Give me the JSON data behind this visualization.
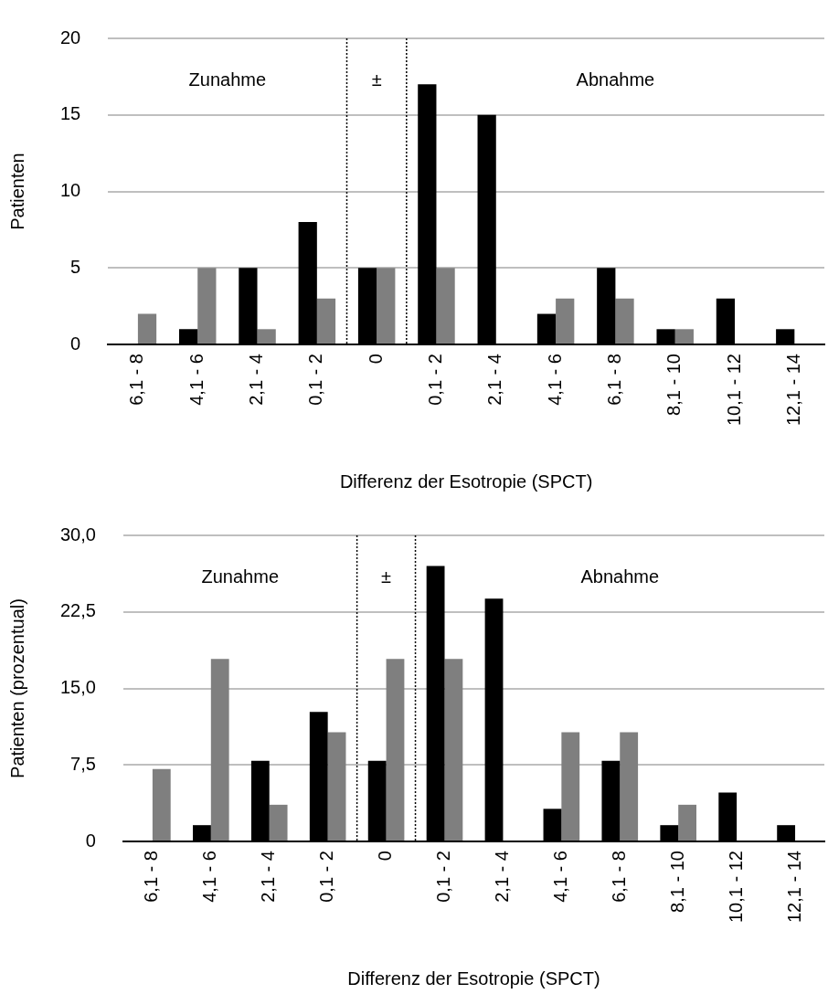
{
  "chart_data": [
    {
      "type": "bar",
      "categories": [
        "6,1 - 8",
        "4,1 - 6",
        "2,1 - 4",
        "0,1 - 2",
        "0",
        "0,1 - 2",
        "2,1 - 4",
        "4,1 - 6",
        "6,1 - 8",
        "8,1 - 10",
        "10,1 - 12",
        "12,1 - 14"
      ],
      "series": [
        {
          "color": "#000000",
          "values": [
            0,
            1,
            5,
            8,
            5,
            17,
            15,
            2,
            5,
            1,
            3,
            1
          ]
        },
        {
          "color": "#7f7f7f",
          "values": [
            2,
            5,
            1,
            3,
            5,
            5,
            0,
            3,
            3,
            1,
            0,
            0
          ]
        }
      ],
      "ylim": [
        0,
        20
      ],
      "yticks": [
        0,
        5,
        10,
        15,
        20
      ],
      "grid": "y",
      "legend": false,
      "ylabel": "Patienten",
      "xlabel": "Differenz der Esotropie (SPCT)",
      "annotations": [
        "Zunahme",
        "±",
        "Abnahme"
      ]
    },
    {
      "type": "bar",
      "categories": [
        "6,1 - 8",
        "4,1 - 6",
        "2,1 - 4",
        "0,1 - 2",
        "0",
        "0,1 - 2",
        "2,1 - 4",
        "4,1 - 6",
        "6,1 - 8",
        "8,1 - 10",
        "10,1 - 12",
        "12,1 - 14"
      ],
      "series": [
        {
          "color": "#000000",
          "values": [
            0,
            1.6,
            7.9,
            12.7,
            7.9,
            27.0,
            23.8,
            3.2,
            7.9,
            1.6,
            4.8,
            1.6
          ]
        },
        {
          "color": "#7f7f7f",
          "values": [
            7.1,
            17.9,
            3.6,
            10.7,
            17.9,
            17.9,
            0,
            10.7,
            10.7,
            3.6,
            0,
            0
          ]
        }
      ],
      "ylim": [
        0,
        30
      ],
      "yticks": [
        0,
        {
          "value": 7.5,
          "label": "7,5"
        },
        {
          "value": 15,
          "label": "15,0"
        },
        {
          "value": 22.5,
          "label": "22,5"
        },
        {
          "value": 30,
          "label": "30,0"
        }
      ],
      "grid": "y",
      "legend": false,
      "ylabel": "Patienten (prozentual)",
      "xlabel": "Differenz der Esotropie (SPCT)",
      "annotations": [
        "Zunahme",
        "±",
        "Abnahme"
      ]
    }
  ]
}
